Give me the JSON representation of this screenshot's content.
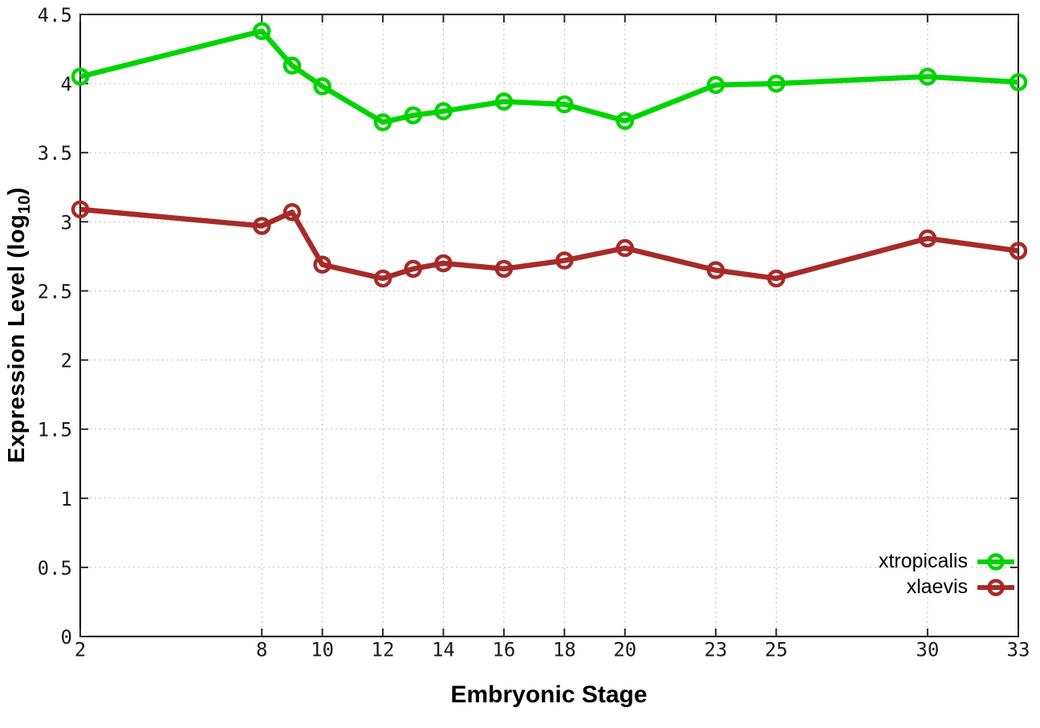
{
  "chart_data": {
    "type": "line",
    "title": "",
    "xlabel": "Embryonic Stage",
    "ylabel": "Expression Level (log10)",
    "ylabel_parts": {
      "main": "Expression Level (log",
      "sub": "10",
      "close": ")"
    },
    "xlim": [
      2,
      33
    ],
    "ylim": [
      0,
      4.5
    ],
    "x_ticks": [
      2,
      8,
      10,
      12,
      14,
      16,
      18,
      20,
      23,
      25,
      30,
      33
    ],
    "y_ticks": [
      0,
      0.5,
      1,
      1.5,
      2,
      2.5,
      3,
      3.5,
      4,
      4.5
    ],
    "y_tick_labels": [
      "0",
      "0.5",
      "1",
      "1.5",
      "2",
      "2.5",
      "3",
      "3.5",
      "4",
      "4.5"
    ],
    "grid": true,
    "legend_position": "bottom-right",
    "marker": "open-circle",
    "x": [
      2,
      8,
      9,
      10,
      12,
      13,
      14,
      16,
      18,
      20,
      23,
      25,
      30,
      33
    ],
    "series": [
      {
        "name": "xtropicalis",
        "color": "#00d400",
        "values": [
          4.05,
          4.38,
          4.13,
          3.98,
          3.72,
          3.77,
          3.8,
          3.87,
          3.85,
          3.73,
          3.99,
          4.0,
          4.05,
          4.01
        ]
      },
      {
        "name": "xlaevis",
        "color": "#a62b28",
        "values": [
          3.09,
          2.97,
          3.07,
          2.69,
          2.59,
          2.66,
          2.7,
          2.66,
          2.72,
          2.81,
          2.65,
          2.59,
          2.88,
          2.79
        ]
      }
    ]
  }
}
